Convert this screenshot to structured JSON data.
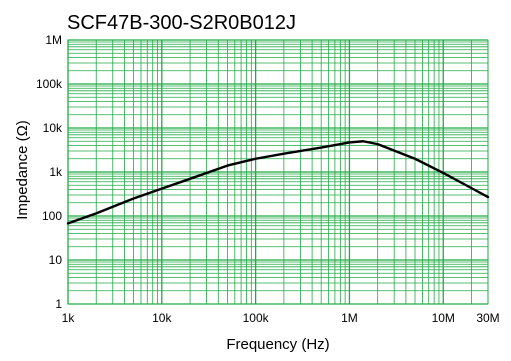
{
  "chart_data": {
    "type": "line",
    "title": "SCF47B-300-S2R0B012J",
    "xlabel": "Frequency (Hz)",
    "ylabel": "Impedance (Ω)",
    "x_scale": "log",
    "y_scale": "log",
    "xlim": [
      1000,
      30000000
    ],
    "ylim": [
      1,
      1000000
    ],
    "x_ticks": [
      {
        "value": 1000,
        "label": "1k"
      },
      {
        "value": 10000,
        "label": "10k"
      },
      {
        "value": 100000,
        "label": "100k"
      },
      {
        "value": 1000000,
        "label": "1M"
      },
      {
        "value": 10000000,
        "label": "10M"
      },
      {
        "value": 30000000,
        "label": "30M"
      }
    ],
    "y_ticks": [
      {
        "value": 1,
        "label": "1"
      },
      {
        "value": 10,
        "label": "10"
      },
      {
        "value": 100,
        "label": "100"
      },
      {
        "value": 1000,
        "label": "1k"
      },
      {
        "value": 10000,
        "label": "10k"
      },
      {
        "value": 100000,
        "label": "100k"
      },
      {
        "value": 1000000,
        "label": "1M"
      }
    ],
    "grid": true,
    "grid_color": "#22aa44",
    "line_color": "#000000",
    "series": [
      {
        "x": [
          1000,
          2000,
          5000,
          10000,
          20000,
          50000,
          100000,
          200000,
          500000,
          1000000,
          1400000,
          2000000,
          5000000,
          10000000,
          20000000,
          30000000
        ],
        "y": [
          68,
          115,
          250,
          420,
          700,
          1400,
          2000,
          2600,
          3600,
          4700,
          5000,
          4300,
          2000,
          950,
          430,
          270
        ]
      }
    ]
  }
}
